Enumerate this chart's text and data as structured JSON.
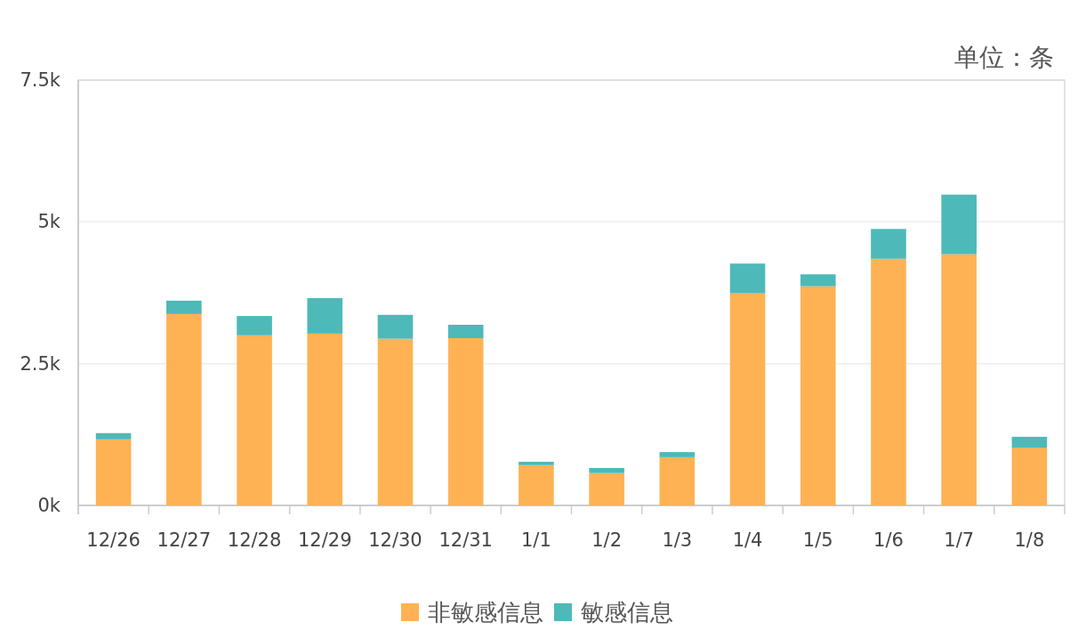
{
  "chart_data": {
    "type": "bar",
    "stacked": true,
    "annotations": [
      "单位：条"
    ],
    "categories": [
      "12/26",
      "12/27",
      "12/28",
      "12/29",
      "12/30",
      "12/31",
      "1/1",
      "1/2",
      "1/3",
      "1/4",
      "1/5",
      "1/6",
      "1/7",
      "1/8"
    ],
    "series": [
      {
        "name": "非敏感信息",
        "color": "#feb254",
        "values": [
          1165,
          3375,
          3000,
          3030,
          2940,
          2950,
          710,
          570,
          850,
          3740,
          3865,
          4350,
          4430,
          1020
        ]
      },
      {
        "name": "敏感信息",
        "color": "#4db9b8",
        "values": [
          110,
          235,
          340,
          625,
          420,
          235,
          60,
          90,
          90,
          525,
          210,
          525,
          1050,
          190
        ]
      }
    ],
    "ylim": [
      0,
      7500
    ],
    "yticks": [
      {
        "value": 0,
        "label": "0k"
      },
      {
        "value": 2500,
        "label": "2.5k"
      },
      {
        "value": 5000,
        "label": "5k"
      },
      {
        "value": 7500,
        "label": "7.5k"
      }
    ],
    "grid": "y",
    "legend": "bottom"
  }
}
